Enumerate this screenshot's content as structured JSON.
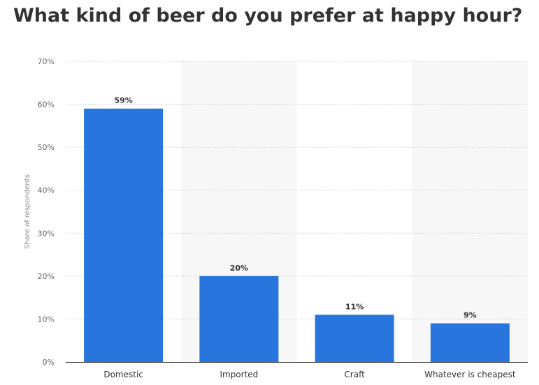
{
  "title": "What kind of beer do you prefer at happy hour?",
  "chart_data": {
    "type": "bar",
    "title": "What kind of beer do you prefer at happy hour?",
    "categories": [
      "Domestic",
      "Imported",
      "Craft",
      "Whatever is cheapest"
    ],
    "values": [
      59,
      20,
      11,
      9
    ],
    "data_labels": [
      "59%",
      "20%",
      "11%",
      "9%"
    ],
    "xlabel": "",
    "ylabel": "Share of respondents",
    "ylim": [
      0,
      70
    ],
    "y_ticks": [
      0,
      10,
      20,
      30,
      40,
      50,
      60,
      70
    ],
    "y_tick_labels": [
      "0%",
      "10%",
      "20%",
      "30%",
      "40%",
      "50%",
      "60%",
      "70%"
    ],
    "grid": true,
    "legend": "none",
    "colors": {
      "bar": "#2876dd",
      "alt_band": "#f7f7f7",
      "grid": "#cccccc",
      "axis": "#333333",
      "title": "#333333"
    }
  }
}
